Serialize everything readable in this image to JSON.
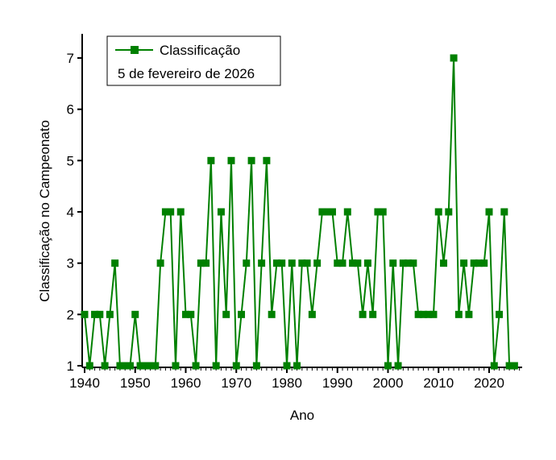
{
  "chart_data": {
    "type": "line",
    "xlabel": "Ano",
    "ylabel": "Classificação no Campeonato",
    "xlim": [
      1939.5,
      2026.5
    ],
    "ylim": [
      0.95,
      7.5
    ],
    "xticks": [
      1940,
      1950,
      1960,
      1970,
      1980,
      1990,
      2000,
      2010,
      2020
    ],
    "yticks": [
      1,
      2,
      3,
      4,
      5,
      6,
      7
    ],
    "grid": false,
    "legend_position": "top-left",
    "color": "#008000",
    "marker": "square",
    "legend": {
      "series_name": "Classificação",
      "subtitle": "5 de fevereiro de 2026"
    },
    "series": [
      {
        "name": "Classificação",
        "x": [
          1940,
          1941,
          1942,
          1943,
          1944,
          1945,
          1946,
          1947,
          1948,
          1949,
          1950,
          1951,
          1952,
          1953,
          1954,
          1955,
          1956,
          1957,
          1958,
          1959,
          1960,
          1961,
          1962,
          1963,
          1964,
          1965,
          1966,
          1967,
          1968,
          1969,
          1970,
          1971,
          1972,
          1973,
          1974,
          1975,
          1976,
          1977,
          1978,
          1979,
          1980,
          1981,
          1982,
          1983,
          1984,
          1985,
          1986,
          1987,
          1988,
          1989,
          1990,
          1991,
          1992,
          1993,
          1994,
          1995,
          1996,
          1997,
          1998,
          1999,
          2000,
          2001,
          2002,
          2003,
          2004,
          2005,
          2006,
          2007,
          2008,
          2009,
          2010,
          2011,
          2012,
          2013,
          2014,
          2015,
          2016,
          2017,
          2018,
          2019,
          2020,
          2021,
          2022,
          2023,
          2024,
          2025
        ],
        "y": [
          2,
          1,
          2,
          2,
          1,
          2,
          3,
          1,
          1,
          1,
          2,
          1,
          1,
          1,
          1,
          3,
          4,
          4,
          1,
          4,
          2,
          2,
          1,
          3,
          3,
          5,
          1,
          4,
          2,
          5,
          1,
          2,
          3,
          5,
          1,
          3,
          5,
          2,
          3,
          3,
          1,
          3,
          1,
          3,
          3,
          2,
          3,
          4,
          4,
          4,
          3,
          3,
          4,
          3,
          3,
          2,
          3,
          2,
          4,
          4,
          1,
          3,
          1,
          3,
          3,
          3,
          2,
          2,
          2,
          2,
          4,
          3,
          4,
          7,
          2,
          3,
          2,
          3,
          3,
          3,
          4,
          1,
          2,
          4,
          1,
          1
        ]
      }
    ]
  }
}
